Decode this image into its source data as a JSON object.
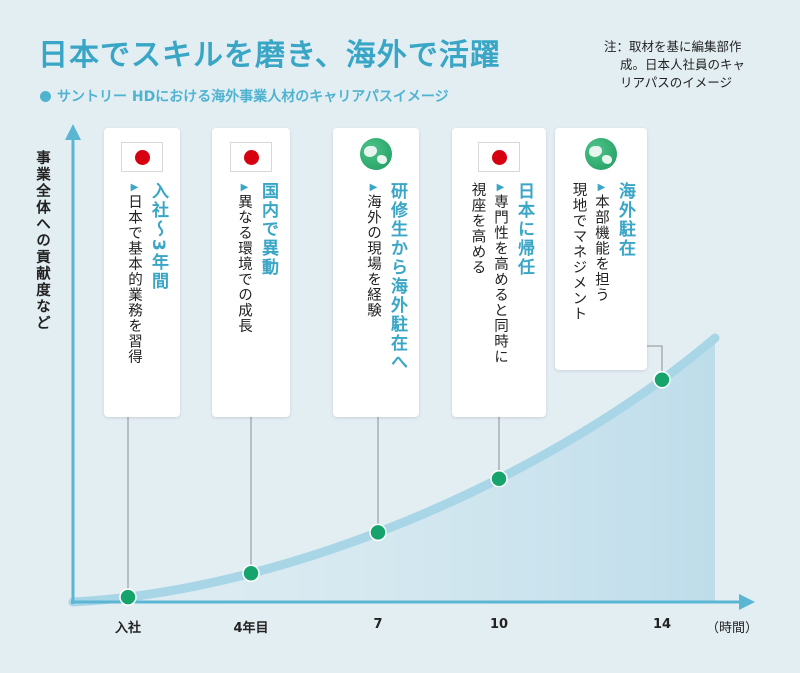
{
  "title": "日本でスキルを磨き、海外で活躍",
  "subtitle": "サントリー HDにおける海外事業人材のキャリアパスイメージ",
  "note_line1": "注：取材を基に編集部作",
  "note_line2": "成。日本人社員のキャ",
  "note_line3": "リアパスのイメージ",
  "chart_data": {
    "type": "line",
    "ylabel": "事業全体への貢献度など",
    "xunit": "（時間）",
    "x": [
      "入社",
      "4年目",
      "7",
      "10",
      "14"
    ],
    "points": [
      {
        "label": "入社",
        "t": 0
      },
      {
        "label": "4年目",
        "t": 4
      },
      {
        "label": "7",
        "t": 7
      },
      {
        "label": "10",
        "t": 10
      },
      {
        "label": "14",
        "t": 14
      }
    ],
    "colors": {
      "curve": "#9fd0e2",
      "point": "#16a46c",
      "axis": "#5bb6d4"
    }
  },
  "cards": [
    {
      "icon": "japan-flag",
      "title": "入社〜3年間",
      "lines": [
        "日本で基本的業務を習得"
      ]
    },
    {
      "icon": "japan-flag",
      "title": "国内で異動",
      "lines": [
        "異なる環境での成長"
      ]
    },
    {
      "icon": "globe",
      "title": "研修生から海外駐在へ",
      "lines": [
        "海外の現場を経験"
      ]
    },
    {
      "icon": "japan-flag",
      "title": "日本に帰任",
      "lines": [
        "専門性を高めると同時に",
        "視座を高める"
      ]
    },
    {
      "icon": "globe",
      "title": "海外駐在",
      "lines": [
        "本部機能を担う",
        "現地でマネジメント"
      ]
    }
  ]
}
